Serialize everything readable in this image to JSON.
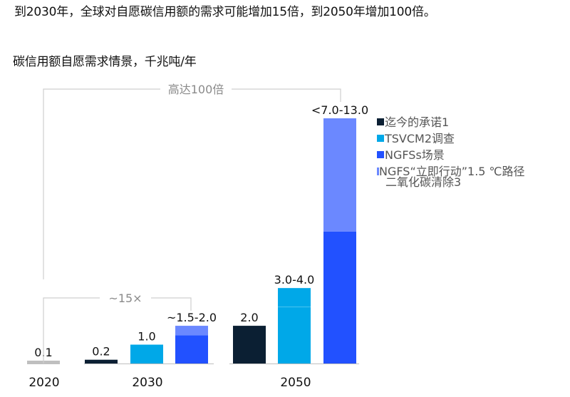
{
  "headline": "到2030年，全球对自愿碳信用额的需求可能增加15倍，到2050年增加100倍。",
  "chart_data": {
    "type": "bar",
    "title": "碳信用额自愿需求情景，千兆吨/年",
    "groups": [
      "2020",
      "2030",
      "2050"
    ],
    "series": [
      {
        "name": "迄今的承诺1",
        "color": "#0b1f33"
      },
      {
        "name": "TSVCM2调查",
        "color": "#00a8e8"
      },
      {
        "name": "NGFSs场景",
        "color": "#2251ff"
      },
      {
        "name": "NGFS“立即行动”1.5 ℃路径二氧化碳清除3",
        "color": "#6b88ff"
      }
    ],
    "legend_lines": [
      "迄今的承诺1",
      "TSVCM2调查",
      "NGFSs场景",
      "NGFS“立即行动”1.5 ℃路径",
      "二氧化碳清除3"
    ],
    "bars": [
      {
        "group": "2020",
        "series": "迄今的承诺1",
        "low": 0.1,
        "high": 0.1,
        "label": "0.1"
      },
      {
        "group": "2030",
        "series": "迄今的承诺1",
        "low": 0.2,
        "high": 0.2,
        "label": "0.2"
      },
      {
        "group": "2030",
        "series": "TSVCM2调查",
        "low": 1.0,
        "high": 1.0,
        "label": "1.0"
      },
      {
        "group": "2030",
        "series": "NGFSs场景",
        "low": 1.5,
        "high": 2.0,
        "label": "~1.5-2.0"
      },
      {
        "group": "2050",
        "series": "迄今的承诺1",
        "low": 2.0,
        "high": 2.0,
        "label": "2.0"
      },
      {
        "group": "2050",
        "series": "TSVCM2调查",
        "low": 3.0,
        "high": 4.0,
        "label": "3.0-4.0"
      },
      {
        "group": "2050",
        "series": "NGFSs场景",
        "low": 7.0,
        "high": 13.0,
        "label": "<7.0-13.0"
      }
    ],
    "annotations": [
      {
        "label": "~15×",
        "from": "2020",
        "to": "2030"
      },
      {
        "label": "高达100倍",
        "from": "2020",
        "to": "2050"
      }
    ],
    "ylim": [
      0,
      13.0
    ],
    "xlabel": "",
    "ylabel": ""
  }
}
